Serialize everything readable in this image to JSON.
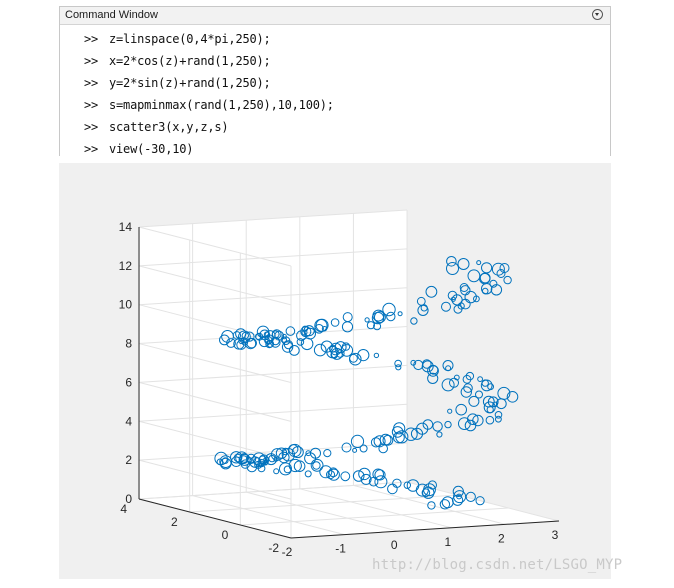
{
  "command_window": {
    "title": "Command Window",
    "prompt": ">>",
    "lines": [
      "z=linspace(0,4*pi,250);",
      "x=2*cos(z)+rand(1,250);",
      "y=2*sin(z)+rand(1,250);",
      "s=mapminmax(rand(1,250),10,100);",
      "scatter3(x,y,z,s)",
      "view(-30,10)"
    ]
  },
  "figure": {
    "background": "#f0f0f0",
    "marker_color": "#0072bd"
  },
  "chart_data": {
    "type": "scatter",
    "view": {
      "azimuth": -30,
      "elevation": 10
    },
    "x_ticks": [
      "-2",
      "-1",
      "0",
      "1",
      "2",
      "3"
    ],
    "y_ticks": [
      "-2",
      "0",
      "2",
      "4"
    ],
    "z_ticks": [
      "0",
      "2",
      "4",
      "6",
      "8",
      "10",
      "12",
      "14"
    ],
    "xlim": [
      -2,
      3
    ],
    "ylim": [
      -2,
      4
    ],
    "zlim": [
      0,
      14
    ],
    "grid": true,
    "marker": "open-circle",
    "n_points": 250,
    "x_formula": "2*cos(z)+rand(1,250)",
    "y_formula": "2*sin(z)+rand(1,250)",
    "z_formula": "linspace(0,4*pi,250)",
    "size_range": [
      10,
      100
    ]
  },
  "watermark": "http://blog.csdn.net/LSGO_MYP"
}
